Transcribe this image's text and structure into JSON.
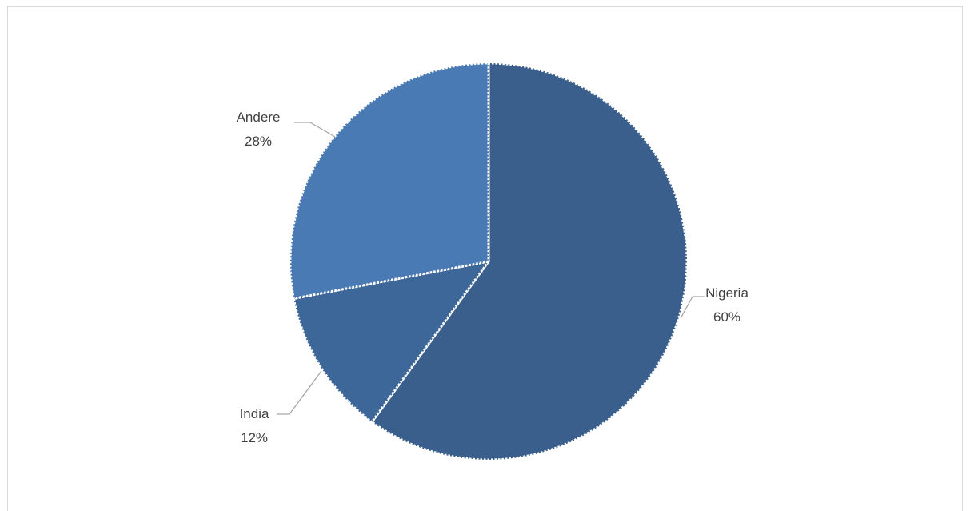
{
  "chart_data": {
    "type": "pie",
    "title": "",
    "start_angle_deg": 0,
    "direction": "clockwise",
    "slices": [
      {
        "label": "Nigeria",
        "value": 60,
        "value_label": "60%",
        "color": "#3a5f8d"
      },
      {
        "label": "India",
        "value": 12,
        "value_label": "12%",
        "color": "#3d6699"
      },
      {
        "label": "Andere",
        "value": 28,
        "value_label": "28%",
        "color": "#4a7ab4"
      }
    ],
    "slice_border": "dotted white",
    "leader_line_color": "#a6a6a6",
    "legend": "none"
  }
}
